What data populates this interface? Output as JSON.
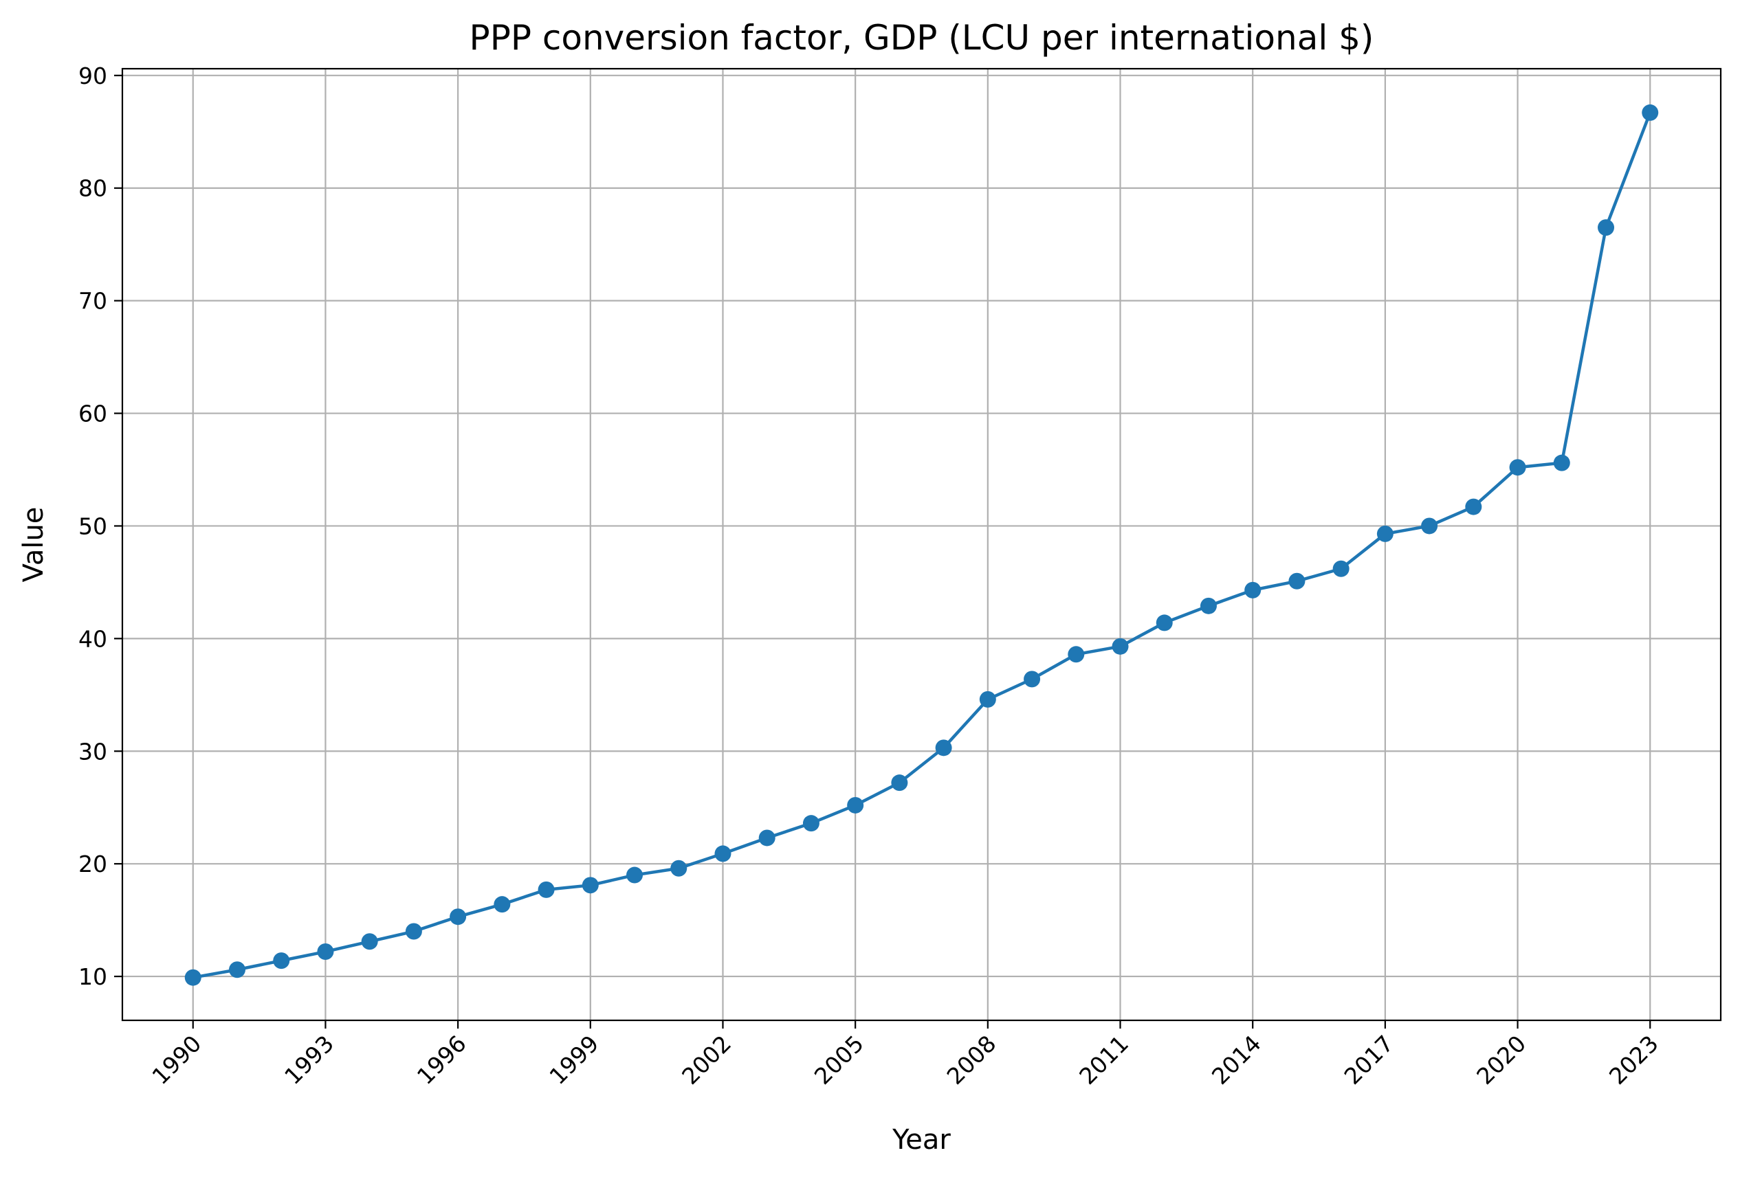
{
  "chart_data": {
    "type": "line",
    "title": "PPP conversion factor, GDP (LCU per international $)",
    "xlabel": "Year",
    "ylabel": "Value",
    "xlim": [
      1988.4,
      2024.6
    ],
    "ylim": [
      6.1,
      90.6
    ],
    "xticks": [
      1990,
      1993,
      1996,
      1999,
      2002,
      2005,
      2008,
      2011,
      2014,
      2017,
      2020,
      2023
    ],
    "yticks": [
      10,
      20,
      30,
      40,
      50,
      60,
      70,
      80,
      90
    ],
    "grid": true,
    "marker": "circle",
    "line_color": "#1f77b4",
    "series": [
      {
        "x": [
          1990,
          1991,
          1992,
          1993,
          1994,
          1995,
          1996,
          1997,
          1998,
          1999,
          2000,
          2001,
          2002,
          2003,
          2004,
          2005,
          2006,
          2007,
          2008,
          2009,
          2010,
          2011,
          2012,
          2013,
          2014,
          2015,
          2016,
          2017,
          2018,
          2019,
          2020,
          2021,
          2022,
          2023
        ],
        "values": [
          9.9,
          10.6,
          11.4,
          12.2,
          13.1,
          14.0,
          15.3,
          16.4,
          17.7,
          18.1,
          19.0,
          19.6,
          20.9,
          22.3,
          23.6,
          25.2,
          27.2,
          30.3,
          34.6,
          36.4,
          38.6,
          39.3,
          41.4,
          42.9,
          44.3,
          45.1,
          46.2,
          49.3,
          50.0,
          51.7,
          55.2,
          55.6,
          76.5,
          86.7
        ]
      }
    ]
  }
}
